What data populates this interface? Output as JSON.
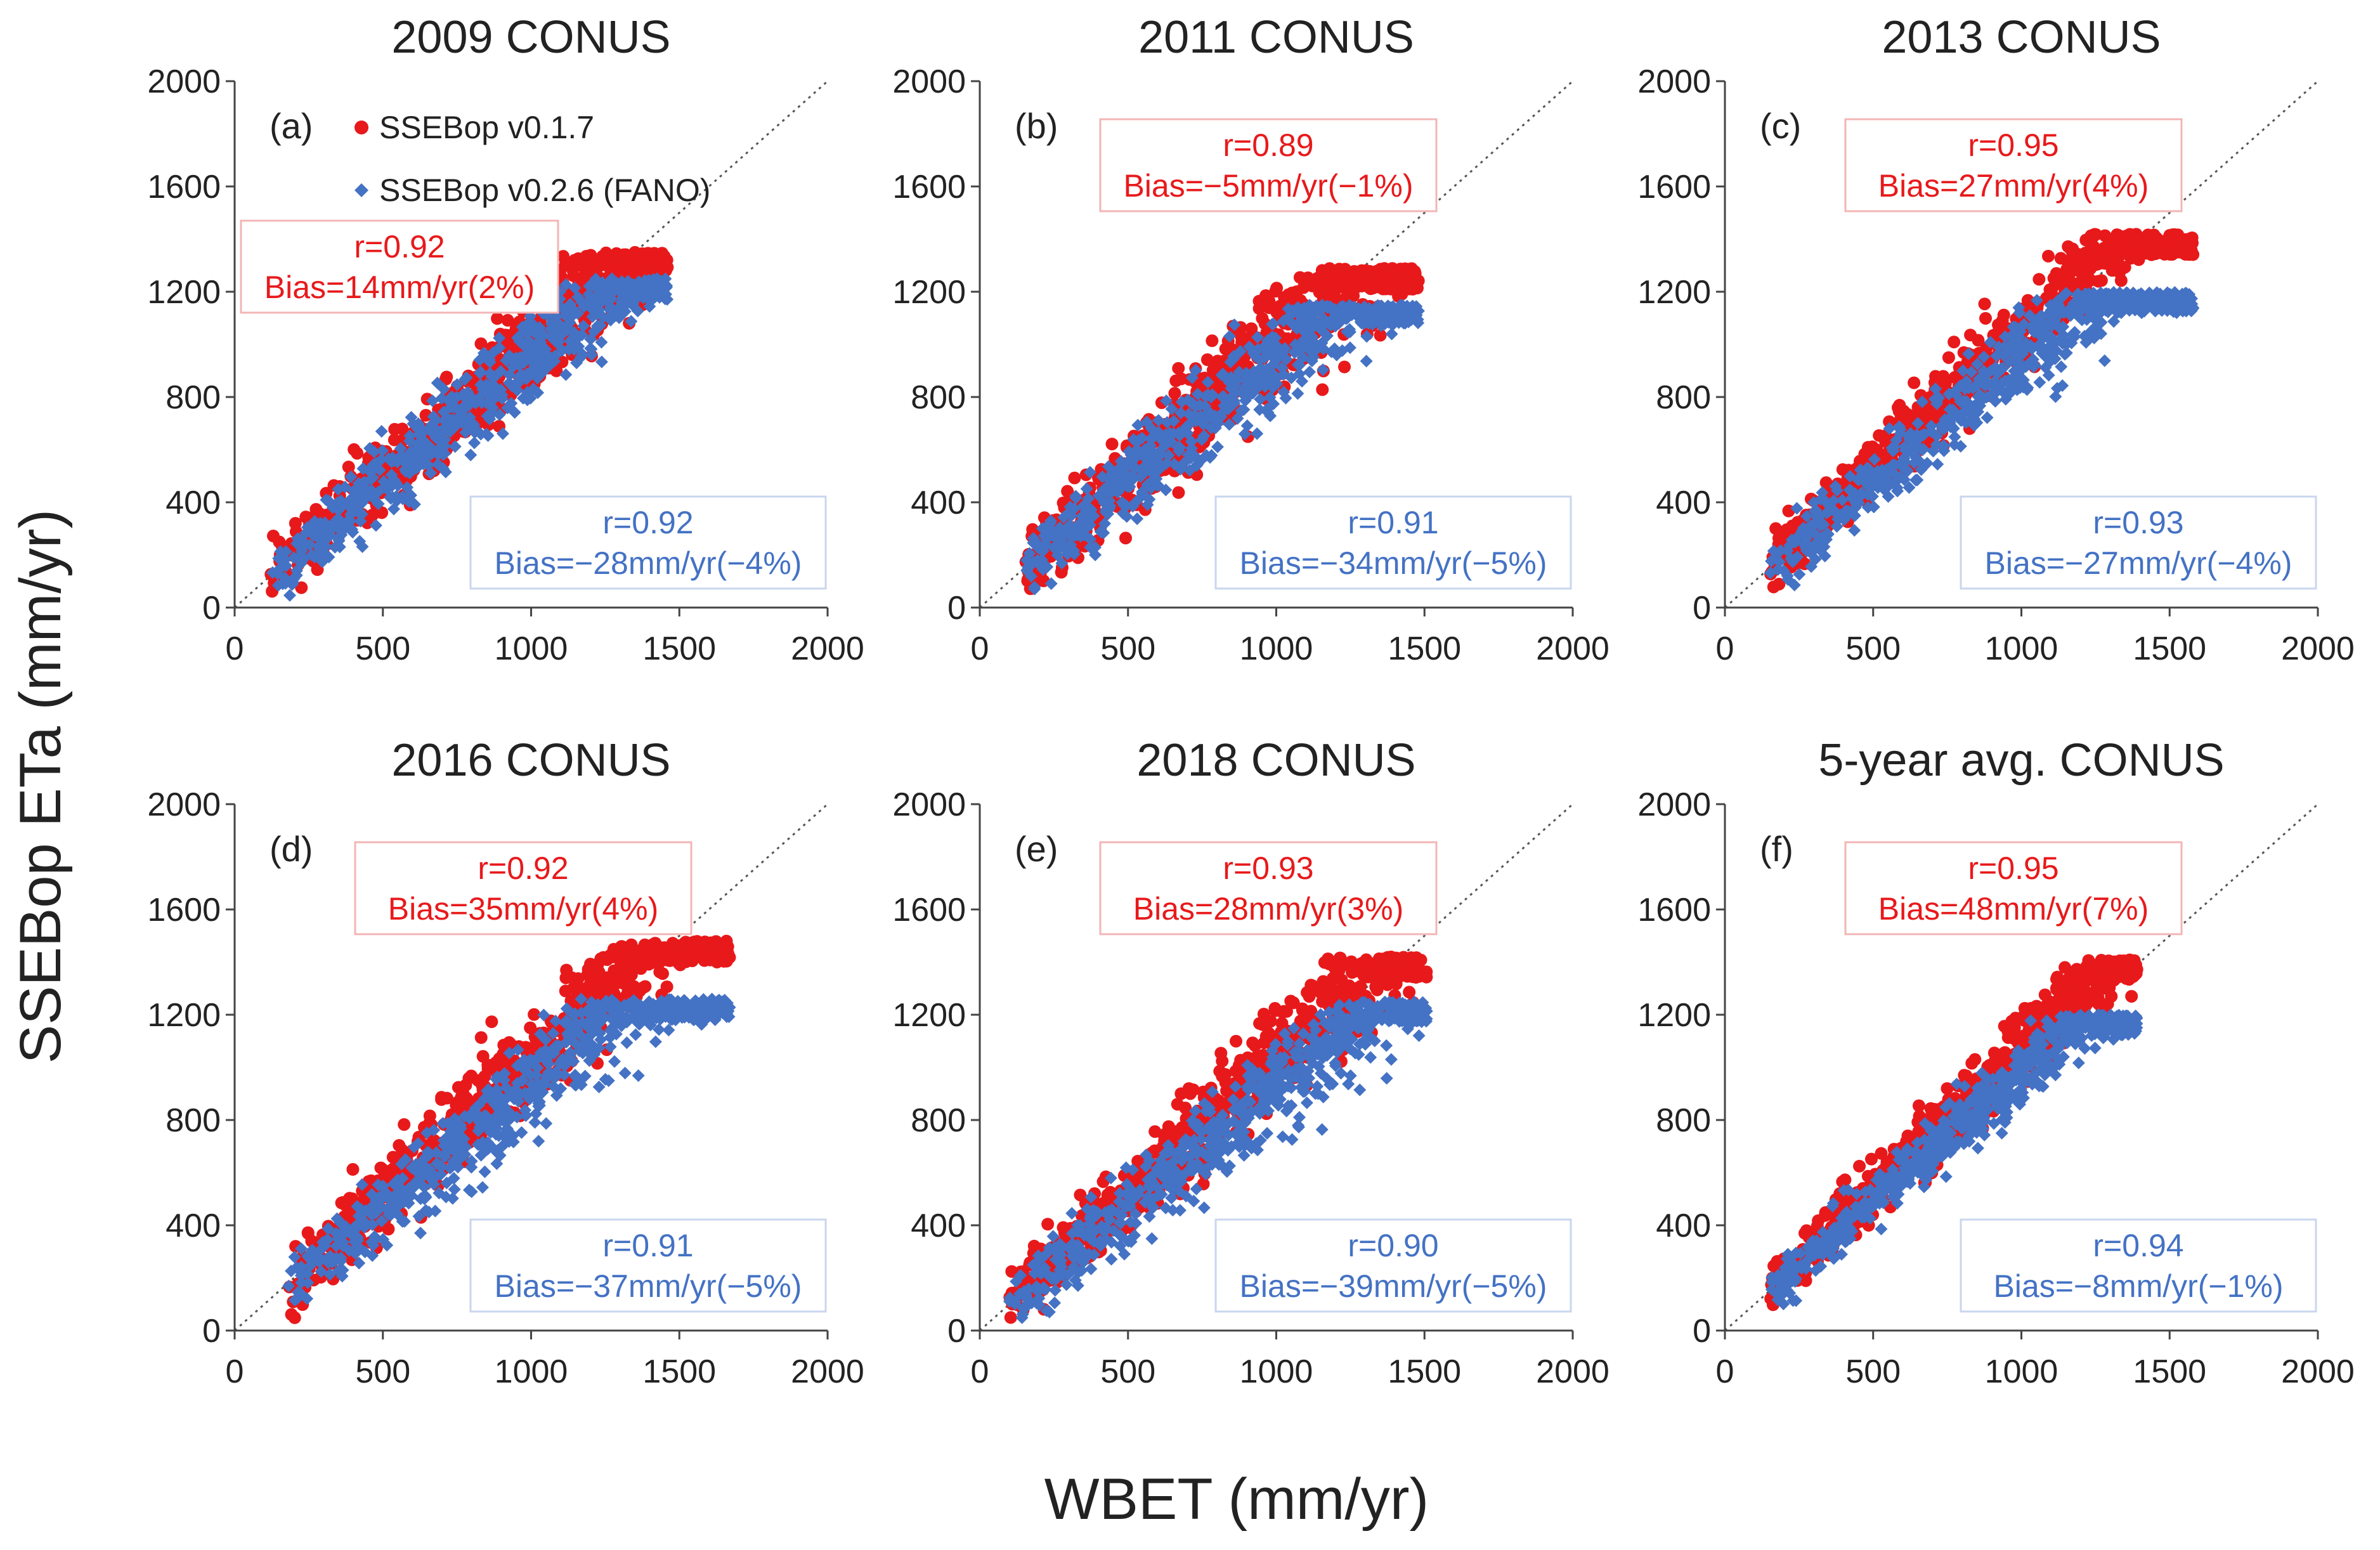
{
  "figure": {
    "ylabel": "SSEBop ETa (mm/yr)",
    "xlabel": "WBET (mm/yr)"
  },
  "colors": {
    "red": "#e8191b",
    "blue": "#4472c4",
    "axis": "#444444",
    "identity": "#555555",
    "redbox": "#f3b5b5",
    "bluebox": "#c9d6ee"
  },
  "legend": {
    "series1": "SSEBop v0.1.7",
    "series2": "SSEBop v0.2.6 (FANO)"
  },
  "chart_data": [
    {
      "type": "scatter",
      "panel": "(a)",
      "title": "2009 CONUS",
      "xlim": [
        0,
        2000
      ],
      "ylim": [
        0,
        2000
      ],
      "xticks": [
        "0",
        "500",
        "1000",
        "1500",
        "2000"
      ],
      "yticks": [
        "0",
        "400",
        "800",
        "1200",
        "1600",
        "2000"
      ],
      "series": [
        {
          "name": "SSEBop v0.1.7",
          "r": "r=0.92",
          "bias": "Bias=14mm/yr(2%)",
          "slope": 1.0,
          "offset": 5,
          "sigma": 90,
          "xmin": 120,
          "xmax": 1460,
          "ymax": 1350
        },
        {
          "name": "SSEBop v0.2.6 (FANO)",
          "r": "r=0.92",
          "bias": "Bias=−28mm/yr(−4%)",
          "slope": 0.95,
          "offset": 0,
          "sigma": 95,
          "xmin": 120,
          "xmax": 1460,
          "ymax": 1250
        }
      ]
    },
    {
      "type": "scatter",
      "panel": "(b)",
      "title": "2011 CONUS",
      "xlim": [
        0,
        2000
      ],
      "ylim": [
        0,
        2000
      ],
      "xticks": [
        "0",
        "500",
        "1000",
        "1500",
        "2000"
      ],
      "yticks": [
        "0",
        "400",
        "800",
        "1200",
        "1600",
        "2000"
      ],
      "series": [
        {
          "name": "SSEBop v0.1.7",
          "r": "r=0.89",
          "bias": "Bias=−5mm/yr(−1%)",
          "slope": 1.02,
          "offset": 0,
          "sigma": 110,
          "xmin": 150,
          "xmax": 1480,
          "ymax": 1290
        },
        {
          "name": "SSEBop v0.2.6 (FANO)",
          "r": "r=0.91",
          "bias": "Bias=−34mm/yr(−5%)",
          "slope": 0.95,
          "offset": 0,
          "sigma": 100,
          "xmin": 150,
          "xmax": 1480,
          "ymax": 1150
        }
      ]
    },
    {
      "type": "scatter",
      "panel": "(c)",
      "title": "2013 CONUS",
      "xlim": [
        0,
        2000
      ],
      "ylim": [
        0,
        2000
      ],
      "xticks": [
        "0",
        "500",
        "1000",
        "1500",
        "2000"
      ],
      "yticks": [
        "0",
        "400",
        "800",
        "1200",
        "1600",
        "2000"
      ],
      "series": [
        {
          "name": "SSEBop v0.1.7",
          "r": "r=0.95",
          "bias": "Bias=27mm/yr(4%)",
          "slope": 1.06,
          "offset": 0,
          "sigma": 80,
          "xmin": 150,
          "xmax": 1580,
          "ymax": 1420
        },
        {
          "name": "SSEBop v0.2.6 (FANO)",
          "r": "r=0.93",
          "bias": "Bias=−27mm/yr(−4%)",
          "slope": 0.95,
          "offset": 0,
          "sigma": 85,
          "xmin": 150,
          "xmax": 1580,
          "ymax": 1200
        }
      ]
    },
    {
      "type": "scatter",
      "panel": "(d)",
      "title": "2016 CONUS",
      "xlim": [
        0,
        2000
      ],
      "ylim": [
        0,
        2000
      ],
      "xticks": [
        "0",
        "500",
        "1000",
        "1500",
        "2000"
      ],
      "yticks": [
        "0",
        "400",
        "800",
        "1200",
        "1600",
        "2000"
      ],
      "series": [
        {
          "name": "SSEBop v0.1.7",
          "r": "r=0.92",
          "bias": "Bias=35mm/yr(4%)",
          "slope": 1.04,
          "offset": 0,
          "sigma": 100,
          "xmin": 180,
          "xmax": 1670,
          "ymax": 1480
        },
        {
          "name": "SSEBop v0.2.6 (FANO)",
          "r": "r=0.91",
          "bias": "Bias=−37mm/yr(−5%)",
          "slope": 0.93,
          "offset": 0,
          "sigma": 95,
          "xmin": 180,
          "xmax": 1670,
          "ymax": 1260
        }
      ]
    },
    {
      "type": "scatter",
      "panel": "(e)",
      "title": "2018 CONUS",
      "xlim": [
        0,
        2000
      ],
      "ylim": [
        0,
        2000
      ],
      "xticks": [
        "0",
        "500",
        "1000",
        "1500",
        "2000"
      ],
      "yticks": [
        "0",
        "400",
        "800",
        "1200",
        "1600",
        "2000"
      ],
      "series": [
        {
          "name": "SSEBop v0.1.7",
          "r": "r=0.93",
          "bias": "Bias=28mm/yr(3%)",
          "slope": 1.05,
          "offset": 0,
          "sigma": 100,
          "xmin": 100,
          "xmax": 1510,
          "ymax": 1420
        },
        {
          "name": "SSEBop v0.2.6 (FANO)",
          "r": "r=0.90",
          "bias": "Bias=−39mm/yr(−5%)",
          "slope": 0.93,
          "offset": 0,
          "sigma": 100,
          "xmin": 100,
          "xmax": 1510,
          "ymax": 1250
        }
      ]
    },
    {
      "type": "scatter",
      "panel": "(f)",
      "title": "5-year avg. CONUS",
      "xlim": [
        0,
        2000
      ],
      "ylim": [
        0,
        2000
      ],
      "xticks": [
        "0",
        "500",
        "1000",
        "1500",
        "2000"
      ],
      "yticks": [
        "0",
        "400",
        "800",
        "1200",
        "1600",
        "2000"
      ],
      "series": [
        {
          "name": "SSEBop v0.1.7",
          "r": "r=0.95",
          "bias": "Bias=48mm/yr(7%)",
          "slope": 1.07,
          "offset": 0,
          "sigma": 70,
          "xmin": 150,
          "xmax": 1390,
          "ymax": 1410
        },
        {
          "name": "SSEBop v0.2.6 (FANO)",
          "r": "r=0.94",
          "bias": "Bias=−8mm/yr(−1%)",
          "slope": 0.98,
          "offset": 0,
          "sigma": 65,
          "xmin": 150,
          "xmax": 1390,
          "ymax": 1200
        }
      ]
    }
  ]
}
